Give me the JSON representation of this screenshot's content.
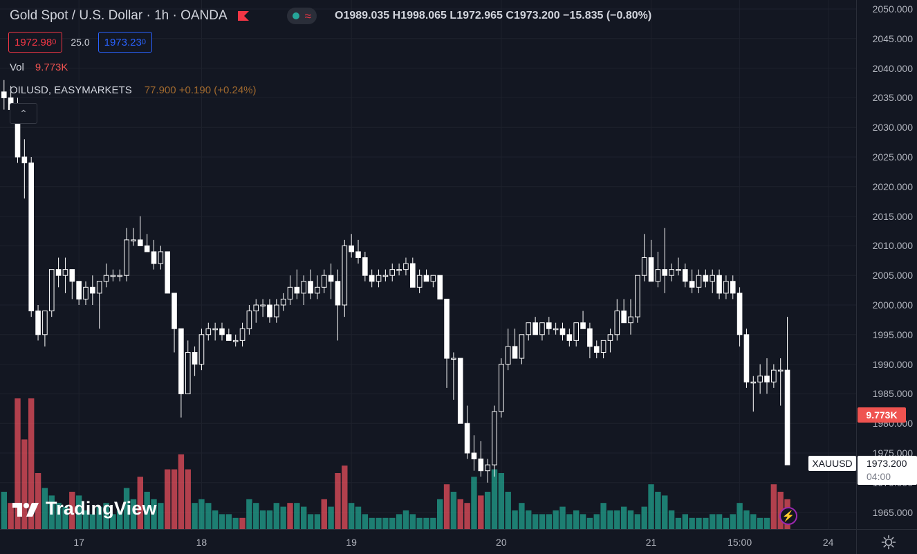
{
  "header": {
    "symbol_title": "Gold Spot / U.S. Dollar · 1h · OANDA",
    "ohlc": {
      "o_label": "O",
      "o_value": "1989.035",
      "h_label": "H",
      "h_value": "1998.065",
      "l_label": "L",
      "l_value": "1972.965",
      "c_label": "C",
      "c_value": "1973.200",
      "change": "−15.835 (−0.80%)"
    },
    "market_status_icon": "green-dot-icon",
    "wave_icon": "wave-icon"
  },
  "trade": {
    "sell_price": "1972.98",
    "sell_price_sup": "0",
    "spread": "25.0",
    "buy_price": "1973.23",
    "buy_price_sup": "0"
  },
  "volume_legend": {
    "label": "Vol",
    "value": "9.773K"
  },
  "compare_legend": {
    "label": "OILUSD, EASYMARKETS",
    "value": "77.900  +0.190 (+0.24%)"
  },
  "collapse_button": {
    "icon": "chevron-up-icon",
    "glyph": "⌃"
  },
  "logo": {
    "text": "TradingView"
  },
  "price_axis": {
    "labels": [
      "2050.000",
      "2045.000",
      "2040.000",
      "2035.000",
      "2030.000",
      "2025.000",
      "2020.000",
      "2015.000",
      "2010.000",
      "2005.000",
      "2000.000",
      "1995.000",
      "1990.000",
      "1985.000",
      "1980.000",
      "1975.000",
      "1970.000",
      "1965.000"
    ]
  },
  "time_axis": {
    "labels": [
      "17",
      "18",
      "19",
      "20",
      "21",
      "15:00",
      "24"
    ]
  },
  "tags": {
    "volume_value": "9.773K",
    "symbol": "XAUUSD",
    "last_price": "1973.200",
    "countdown": "04:00"
  },
  "colors": {
    "background": "#131722",
    "grid": "#1e222d",
    "candle_up": "#ffffff",
    "candle_down": "#ffffff",
    "volume_up": "#22ab94",
    "volume_down": "#f7525f",
    "accent_blue": "#2962ff",
    "accent_red": "#f23645"
  },
  "chart_data": {
    "type": "candlestick",
    "title": "Gold Spot / U.S. Dollar · 1h · OANDA",
    "ylim": [
      1962,
      2052
    ],
    "price_axis_step": 5,
    "x_axis_ticks": [
      {
        "label": "17",
        "index": 11
      },
      {
        "label": "18",
        "index": 29
      },
      {
        "label": "19",
        "index": 51
      },
      {
        "label": "20",
        "index": 73
      },
      {
        "label": "21",
        "index": 95
      },
      {
        "label": "15:00",
        "index": 108
      },
      {
        "label": "24",
        "index": 121
      }
    ],
    "grid": true,
    "candles": [
      [
        2036,
        2038,
        2033,
        2035
      ],
      [
        2035,
        2037,
        2032,
        2033
      ],
      [
        2033,
        2035,
        2024,
        2025
      ],
      [
        2025,
        2028,
        2018,
        2024
      ],
      [
        2024,
        2025,
        1998,
        1999
      ],
      [
        1999,
        2000,
        1994,
        1995
      ],
      [
        1995,
        1999,
        1993,
        1999
      ],
      [
        1999,
        2006,
        1998,
        2006
      ],
      [
        2006,
        2008,
        2003,
        2005
      ],
      [
        2005,
        2008,
        2002,
        2006
      ],
      [
        2006,
        2006,
        2001,
        2004
      ],
      [
        2004,
        2004,
        2000,
        2001
      ],
      [
        2001,
        2004,
        2000,
        2003
      ],
      [
        2003,
        2005,
        2000,
        2002
      ],
      [
        2002,
        2004,
        1996,
        2004
      ],
      [
        2004,
        2007,
        2003,
        2005
      ],
      [
        2005,
        2006,
        2004,
        2005
      ],
      [
        2005,
        2006,
        2004,
        2005
      ],
      [
        2005,
        2013,
        2004,
        2011
      ],
      [
        2011,
        2013,
        2010,
        2011
      ],
      [
        2011,
        2015,
        2010,
        2010
      ],
      [
        2010,
        2012,
        2009,
        2009
      ],
      [
        2009,
        2011,
        2006,
        2007
      ],
      [
        2007,
        2010,
        2006,
        2009
      ],
      [
        2009,
        2009,
        2002,
        2002
      ],
      [
        2002,
        2002,
        1992,
        1996
      ],
      [
        1996,
        1996,
        1981,
        1985
      ],
      [
        1985,
        1994,
        1985,
        1992
      ],
      [
        1992,
        1993,
        1988,
        1990
      ],
      [
        1990,
        1996,
        1989,
        1995
      ],
      [
        1995,
        1997,
        1994,
        1996
      ],
      [
        1996,
        1997,
        1994,
        1996
      ],
      [
        1996,
        1997,
        1994,
        1995
      ],
      [
        1995,
        1996,
        1994,
        1994
      ],
      [
        1994,
        1995,
        1993,
        1994
      ],
      [
        1994,
        1997,
        1993,
        1996
      ],
      [
        1996,
        2000,
        1995,
        1999
      ],
      [
        1999,
        2001,
        1997,
        2000
      ],
      [
        2000,
        2001,
        1998,
        2000
      ],
      [
        2000,
        2001,
        1997,
        1998
      ],
      [
        1998,
        2001,
        1997,
        2000
      ],
      [
        2000,
        2002,
        1999,
        2001
      ],
      [
        2001,
        2005,
        2000,
        2003
      ],
      [
        2003,
        2006,
        2001,
        2002
      ],
      [
        2002,
        2005,
        2000,
        2004
      ],
      [
        2004,
        2006,
        2001,
        2002
      ],
      [
        2002,
        2005,
        2001,
        2003
      ],
      [
        2003,
        2006,
        2002,
        2005
      ],
      [
        2005,
        2007,
        2001,
        2004
      ],
      [
        2004,
        2006,
        1994,
        2000
      ],
      [
        2000,
        2011,
        1998,
        2010
      ],
      [
        2010,
        2012,
        2008,
        2009
      ],
      [
        2009,
        2011,
        2007,
        2008
      ],
      [
        2008,
        2009,
        2004,
        2005
      ],
      [
        2005,
        2006,
        2003,
        2004
      ],
      [
        2004,
        2006,
        2003,
        2005
      ],
      [
        2005,
        2006,
        2004,
        2005
      ],
      [
        2005,
        2007,
        2004,
        2006
      ],
      [
        2006,
        2007,
        2005,
        2006
      ],
      [
        2006,
        2008,
        2005,
        2007
      ],
      [
        2007,
        2008,
        2003,
        2003
      ],
      [
        2003,
        2006,
        2002,
        2005
      ],
      [
        2005,
        2006,
        2004,
        2004
      ],
      [
        2004,
        2005,
        2003,
        2005
      ],
      [
        2005,
        2005,
        2001,
        2001
      ],
      [
        2001,
        2001,
        1986,
        1991
      ],
      [
        1991,
        1992,
        1984,
        1991
      ],
      [
        1991,
        1991,
        1980,
        1980
      ],
      [
        1980,
        1983,
        1974,
        1975
      ],
      [
        1975,
        1978,
        1972,
        1974
      ],
      [
        1974,
        1977,
        1971,
        1972
      ],
      [
        1972,
        1974,
        1970,
        1973
      ],
      [
        1973,
        1983,
        1971,
        1982
      ],
      [
        1982,
        1991,
        1981,
        1990
      ],
      [
        1990,
        1996,
        1989,
        1993
      ],
      [
        1993,
        1996,
        1991,
        1991
      ],
      [
        1991,
        1995,
        1990,
        1995
      ],
      [
        1995,
        1997,
        1994,
        1997
      ],
      [
        1997,
        1998,
        1995,
        1995
      ],
      [
        1995,
        1997,
        1994,
        1997
      ],
      [
        1997,
        1998,
        1995,
        1996
      ],
      [
        1996,
        1997,
        1995,
        1996
      ],
      [
        1996,
        1997,
        1994,
        1995
      ],
      [
        1995,
        1996,
        1993,
        1994
      ],
      [
        1994,
        1997,
        1993,
        1997
      ],
      [
        1997,
        1999,
        1996,
        1996
      ],
      [
        1996,
        1997,
        1991,
        1993
      ],
      [
        1993,
        1994,
        1991,
        1992
      ],
      [
        1992,
        1994,
        1991,
        1994
      ],
      [
        1994,
        1996,
        1992,
        1995
      ],
      [
        1995,
        2001,
        1994,
        1999
      ],
      [
        1999,
        2001,
        1997,
        1997
      ],
      [
        1997,
        2001,
        1995,
        1998
      ],
      [
        1998,
        2005,
        1997,
        2005
      ],
      [
        2005,
        2012,
        2004,
        2008
      ],
      [
        2008,
        2011,
        2004,
        2004
      ],
      [
        2004,
        2009,
        2003,
        2006
      ],
      [
        2006,
        2013,
        2002,
        2005
      ],
      [
        2005,
        2007,
        2004,
        2006
      ],
      [
        2006,
        2008,
        2005,
        2006
      ],
      [
        2006,
        2007,
        2003,
        2004
      ],
      [
        2004,
        2006,
        2002,
        2003
      ],
      [
        2003,
        2006,
        2002,
        2005
      ],
      [
        2005,
        2006,
        2003,
        2004
      ],
      [
        2004,
        2006,
        2002,
        2005
      ],
      [
        2005,
        2006,
        2001,
        2002
      ],
      [
        2002,
        2005,
        2001,
        2004
      ],
      [
        2004,
        2005,
        2001,
        2002
      ],
      [
        2002,
        2003,
        1993,
        1995
      ],
      [
        1995,
        1996,
        1986,
        1987
      ],
      [
        1987,
        1988,
        1982,
        1987
      ],
      [
        1987,
        1990,
        1985,
        1988
      ],
      [
        1988,
        1991,
        1985,
        1987
      ],
      [
        1987,
        1990,
        1986,
        1989
      ],
      [
        1989,
        1991,
        1983,
        1989
      ],
      [
        1989,
        1998,
        1973,
        1973
      ]
    ],
    "volume": [
      [
        20,
        "up"
      ],
      [
        14,
        "down"
      ],
      [
        70,
        "down"
      ],
      [
        48,
        "down"
      ],
      [
        70,
        "down"
      ],
      [
        30,
        "down"
      ],
      [
        22,
        "up"
      ],
      [
        18,
        "up"
      ],
      [
        14,
        "up"
      ],
      [
        12,
        "up"
      ],
      [
        20,
        "down"
      ],
      [
        18,
        "up"
      ],
      [
        10,
        "up"
      ],
      [
        8,
        "up"
      ],
      [
        12,
        "up"
      ],
      [
        14,
        "up"
      ],
      [
        8,
        "up"
      ],
      [
        10,
        "up"
      ],
      [
        22,
        "up"
      ],
      [
        16,
        "up"
      ],
      [
        28,
        "down"
      ],
      [
        20,
        "up"
      ],
      [
        16,
        "up"
      ],
      [
        14,
        "up"
      ],
      [
        32,
        "down"
      ],
      [
        32,
        "down"
      ],
      [
        40,
        "down"
      ],
      [
        32,
        "down"
      ],
      [
        14,
        "up"
      ],
      [
        16,
        "up"
      ],
      [
        14,
        "up"
      ],
      [
        10,
        "up"
      ],
      [
        8,
        "up"
      ],
      [
        8,
        "up"
      ],
      [
        6,
        "up"
      ],
      [
        6,
        "down"
      ],
      [
        16,
        "up"
      ],
      [
        14,
        "up"
      ],
      [
        10,
        "up"
      ],
      [
        10,
        "up"
      ],
      [
        14,
        "up"
      ],
      [
        12,
        "up"
      ],
      [
        14,
        "down"
      ],
      [
        14,
        "up"
      ],
      [
        12,
        "up"
      ],
      [
        8,
        "up"
      ],
      [
        8,
        "up"
      ],
      [
        16,
        "down"
      ],
      [
        12,
        "up"
      ],
      [
        30,
        "down"
      ],
      [
        34,
        "down"
      ],
      [
        14,
        "up"
      ],
      [
        12,
        "up"
      ],
      [
        8,
        "up"
      ],
      [
        6,
        "up"
      ],
      [
        6,
        "up"
      ],
      [
        6,
        "up"
      ],
      [
        6,
        "up"
      ],
      [
        8,
        "up"
      ],
      [
        10,
        "up"
      ],
      [
        8,
        "up"
      ],
      [
        6,
        "up"
      ],
      [
        6,
        "up"
      ],
      [
        6,
        "up"
      ],
      [
        16,
        "up"
      ],
      [
        24,
        "down"
      ],
      [
        20,
        "up"
      ],
      [
        16,
        "down"
      ],
      [
        14,
        "down"
      ],
      [
        28,
        "up"
      ],
      [
        18,
        "down"
      ],
      [
        20,
        "up"
      ],
      [
        32,
        "up"
      ],
      [
        30,
        "up"
      ],
      [
        20,
        "up"
      ],
      [
        10,
        "up"
      ],
      [
        14,
        "up"
      ],
      [
        10,
        "up"
      ],
      [
        8,
        "up"
      ],
      [
        8,
        "up"
      ],
      [
        8,
        "up"
      ],
      [
        10,
        "up"
      ],
      [
        12,
        "up"
      ],
      [
        8,
        "up"
      ],
      [
        10,
        "up"
      ],
      [
        8,
        "up"
      ],
      [
        6,
        "up"
      ],
      [
        8,
        "up"
      ],
      [
        14,
        "up"
      ],
      [
        10,
        "up"
      ],
      [
        10,
        "up"
      ],
      [
        12,
        "up"
      ],
      [
        10,
        "up"
      ],
      [
        8,
        "up"
      ],
      [
        12,
        "up"
      ],
      [
        24,
        "up"
      ],
      [
        20,
        "up"
      ],
      [
        18,
        "up"
      ],
      [
        10,
        "up"
      ],
      [
        6,
        "up"
      ],
      [
        8,
        "up"
      ],
      [
        6,
        "up"
      ],
      [
        6,
        "up"
      ],
      [
        6,
        "up"
      ],
      [
        8,
        "up"
      ],
      [
        8,
        "up"
      ],
      [
        6,
        "up"
      ],
      [
        8,
        "up"
      ],
      [
        14,
        "up"
      ],
      [
        10,
        "up"
      ],
      [
        8,
        "up"
      ],
      [
        6,
        "up"
      ],
      [
        6,
        "up"
      ],
      [
        24,
        "down"
      ],
      [
        20,
        "down"
      ],
      [
        16,
        "down"
      ]
    ]
  }
}
